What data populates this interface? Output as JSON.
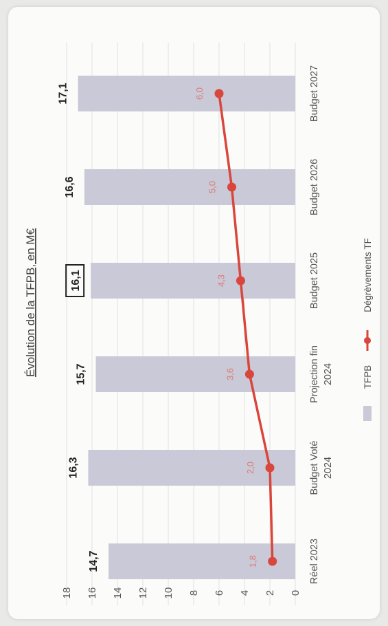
{
  "chart_data": {
    "type": "bar",
    "title": "Évolution de la TFPB, en M€",
    "categories": [
      "Réel 2023",
      "Budget Voté 2024",
      "Projection fin 2024",
      "Budget 2025",
      "Budget 2026",
      "Budget 2027"
    ],
    "series": [
      {
        "name": "TFPB",
        "kind": "bar",
        "color": "#c9c9d8",
        "values": [
          14.7,
          16.3,
          15.7,
          16.1,
          16.6,
          17.1
        ],
        "labels": [
          "14,7",
          "16,3",
          "15,7",
          "16,1",
          "16,6",
          "17,1"
        ]
      },
      {
        "name": "Dégrèvements TF",
        "kind": "line",
        "color": "#d9463b",
        "values": [
          1.8,
          2.0,
          3.6,
          4.3,
          5.0,
          6.0
        ],
        "labels": [
          "1,8",
          "2,0",
          "3,6",
          "4,3",
          "5,0",
          "6,0"
        ]
      }
    ],
    "highlighted_label": "16,1",
    "ylim": [
      0,
      18
    ],
    "yticks": [
      "0",
      "2",
      "4",
      "6",
      "8",
      "10",
      "12",
      "14",
      "16",
      "18"
    ],
    "grid": true,
    "legend_position": "bottom"
  }
}
